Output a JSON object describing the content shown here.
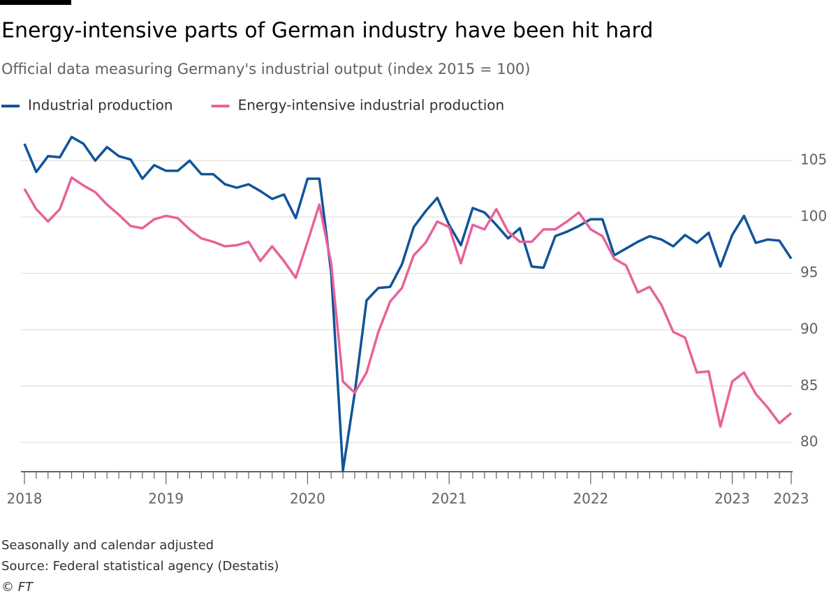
{
  "chart_data": {
    "type": "line",
    "title": "Energy-intensive parts of German industry have been hit hard",
    "subtitle": "Official data measuring Germany's industrial output (index 2015 = 100)",
    "note": "Seasonally and calendar adjusted",
    "source": "Source: Federal statistical agency (Destatis)",
    "credit": "© FT",
    "categories": [
      "2018",
      null,
      null,
      null,
      null,
      null,
      null,
      null,
      null,
      null,
      null,
      null,
      "2019",
      null,
      null,
      null,
      null,
      null,
      null,
      null,
      null,
      null,
      null,
      null,
      "2020",
      null,
      null,
      null,
      null,
      null,
      null,
      null,
      null,
      null,
      null,
      null,
      "2021",
      null,
      null,
      null,
      null,
      null,
      null,
      null,
      null,
      null,
      null,
      null,
      "2022",
      null,
      null,
      null,
      null,
      null,
      null,
      null,
      null,
      null,
      null,
      null,
      "2023",
      null,
      null,
      null,
      null,
      "2023"
    ],
    "series": [
      {
        "name": "Industrial production",
        "color": "#0f5499",
        "values": [
          106.5,
          104.0,
          105.4,
          105.3,
          107.1,
          106.5,
          105.0,
          106.2,
          105.4,
          105.1,
          103.4,
          104.6,
          104.1,
          104.1,
          105.0,
          103.8,
          103.8,
          102.9,
          102.6,
          102.9,
          102.3,
          101.6,
          102.0,
          99.9,
          103.4,
          103.4,
          95.1,
          77.5,
          84.4,
          92.6,
          93.7,
          93.8,
          95.8,
          99.1,
          100.5,
          101.7,
          99.3,
          97.5,
          100.8,
          100.4,
          99.3,
          98.1,
          99.0,
          95.6,
          95.5,
          98.3,
          98.7,
          99.2,
          99.8,
          99.8,
          96.6,
          97.2,
          97.8,
          98.3,
          98.0,
          97.4,
          98.4,
          97.7,
          98.6,
          95.6,
          98.4,
          100.1,
          97.7,
          98.0,
          97.9,
          96.3
        ]
      },
      {
        "name": "Energy-intensive industrial production",
        "color": "#e8629a",
        "values": [
          102.5,
          100.7,
          99.6,
          100.7,
          103.5,
          102.8,
          102.2,
          101.1,
          100.2,
          99.2,
          99.0,
          99.8,
          100.1,
          99.9,
          98.9,
          98.1,
          97.8,
          97.4,
          97.5,
          97.8,
          96.1,
          97.4,
          96.1,
          94.6,
          97.8,
          101.1,
          95.9,
          85.4,
          84.4,
          86.2,
          89.8,
          92.5,
          93.7,
          96.6,
          97.7,
          99.6,
          99.1,
          95.9,
          99.3,
          98.9,
          100.7,
          98.7,
          97.8,
          97.8,
          98.9,
          98.9,
          99.6,
          100.4,
          98.9,
          98.3,
          96.3,
          95.7,
          93.3,
          93.8,
          92.2,
          89.8,
          89.3,
          86.2,
          86.3,
          81.4,
          85.4,
          86.2,
          84.3,
          83.1,
          81.7,
          82.6
        ]
      }
    ],
    "ylim": [
      77.4,
      107.8
    ],
    "yticks": [
      80,
      85,
      90,
      95,
      100,
      105
    ],
    "grid": true,
    "y_axis_side": "right"
  }
}
